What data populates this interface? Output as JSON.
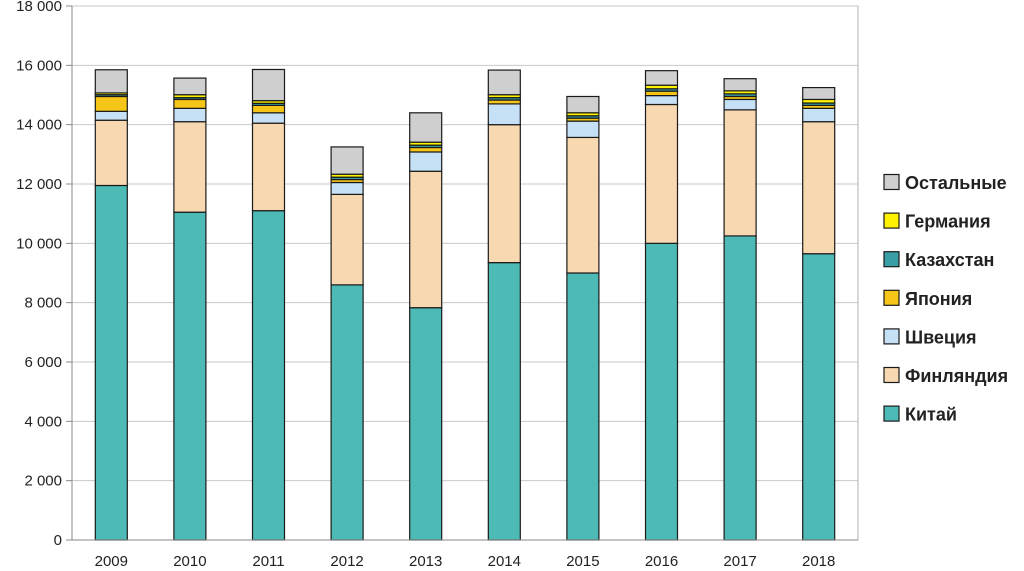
{
  "chart_data": {
    "type": "bar",
    "stacked": true,
    "title": "",
    "xlabel": "",
    "ylabel": "",
    "ylim": [
      0,
      18000
    ],
    "y_ticks": [
      0,
      2000,
      4000,
      6000,
      8000,
      10000,
      12000,
      14000,
      16000,
      18000
    ],
    "y_tick_labels": [
      "0",
      "2 000",
      "4 000",
      "6 000",
      "8 000",
      "10 000",
      "12 000",
      "14 000",
      "16 000",
      "18 000"
    ],
    "grid": "horizontal",
    "legend_position": "right",
    "categories": [
      "2009",
      "2010",
      "2011",
      "2012",
      "2013",
      "2014",
      "2015",
      "2016",
      "2017",
      "2018"
    ],
    "series": [
      {
        "name": "Китай",
        "color": "#4dbab5",
        "values": [
          11950,
          11050,
          11100,
          8600,
          7830,
          9350,
          9000,
          10000,
          10250,
          9650
        ]
      },
      {
        "name": "Финляндия",
        "color": "#f8d8b0",
        "values": [
          2200,
          3050,
          2950,
          3050,
          4600,
          4650,
          4570,
          4680,
          4250,
          4450
        ]
      },
      {
        "name": "Швеция",
        "color": "#c6e0f5",
        "values": [
          300,
          450,
          350,
          400,
          650,
          700,
          550,
          300,
          350,
          450
        ]
      },
      {
        "name": "Япония",
        "color": "#f5c518",
        "values": [
          500,
          300,
          250,
          100,
          150,
          130,
          100,
          150,
          100,
          100
        ]
      },
      {
        "name": "Казахстан",
        "color": "#3a9ea5",
        "values": [
          60,
          60,
          70,
          80,
          80,
          80,
          80,
          80,
          90,
          80
        ]
      },
      {
        "name": "Германия",
        "color": "#fff200",
        "values": [
          60,
          100,
          90,
          100,
          100,
          100,
          100,
          120,
          100,
          120
        ]
      },
      {
        "name": "Остальные",
        "color": "#cfcfcf",
        "values": [
          780,
          560,
          1050,
          920,
          990,
          830,
          550,
          490,
          410,
          400
        ]
      }
    ],
    "legend_order": [
      "Остальные",
      "Германия",
      "Казахстан",
      "Япония",
      "Швеция",
      "Финляндия",
      "Китай"
    ]
  }
}
